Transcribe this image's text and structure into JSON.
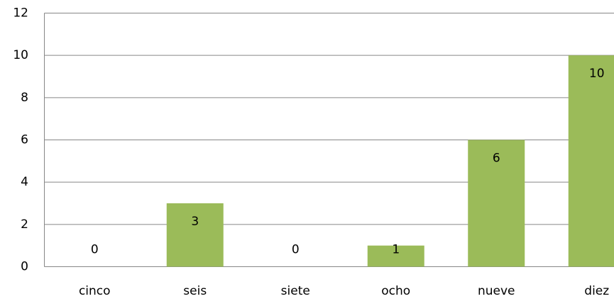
{
  "chart_data": {
    "type": "bar",
    "categories": [
      "cinco",
      "seis",
      "siete",
      "ocho",
      "nueve",
      "diez"
    ],
    "values": [
      0,
      3,
      0,
      1,
      6,
      10
    ],
    "color": "#9bbb59",
    "ylim": [
      0,
      12
    ],
    "yticks": [
      0,
      2,
      4,
      6,
      8,
      10,
      12
    ],
    "grid": true,
    "data_labels": true
  }
}
